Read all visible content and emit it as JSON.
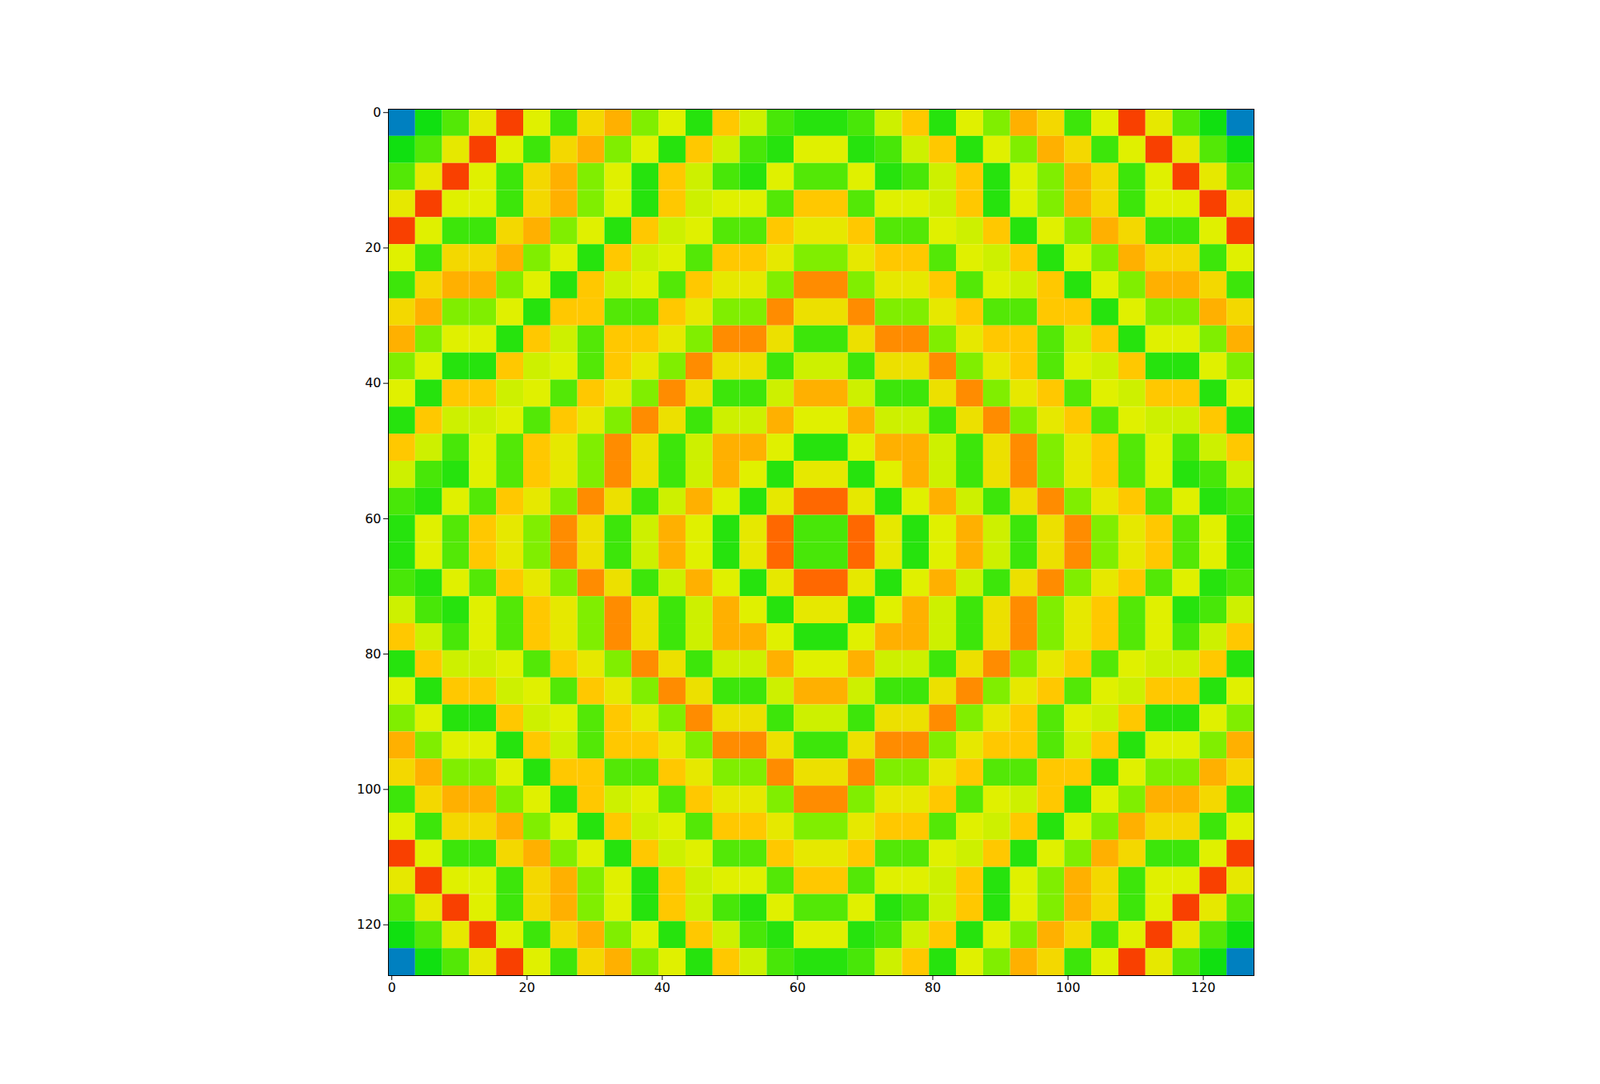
{
  "chart_data": {
    "type": "heatmap",
    "xlim": [
      -0.5,
      127.5
    ],
    "ylim": [
      127.5,
      -0.5
    ],
    "xticks": [
      0,
      20,
      40,
      60,
      80,
      100,
      120
    ],
    "yticks": [
      0,
      20,
      40,
      60,
      80,
      100,
      120
    ],
    "clim": [
      0,
      1
    ],
    "cells": [
      [
        0.2,
        0.4,
        0.46,
        0.62,
        0.82,
        0.6,
        0.44,
        0.66,
        0.72,
        0.5,
        0.6,
        0.42,
        0.7,
        0.58,
        0.45,
        0.42,
        0.42,
        0.45,
        0.58,
        0.7,
        0.42,
        0.6,
        0.5,
        0.72,
        0.66,
        0.44,
        0.6,
        0.82,
        0.62,
        0.46,
        0.4,
        0.2
      ],
      [
        0.4,
        0.46,
        0.62,
        0.82,
        0.6,
        0.44,
        0.66,
        0.72,
        0.5,
        0.6,
        0.42,
        0.7,
        0.58,
        0.45,
        0.42,
        0.6,
        0.6,
        0.42,
        0.45,
        0.58,
        0.7,
        0.42,
        0.6,
        0.5,
        0.72,
        0.66,
        0.44,
        0.6,
        0.82,
        0.62,
        0.46,
        0.4
      ],
      [
        0.46,
        0.62,
        0.82,
        0.6,
        0.44,
        0.66,
        0.72,
        0.5,
        0.6,
        0.42,
        0.7,
        0.58,
        0.45,
        0.42,
        0.6,
        0.46,
        0.46,
        0.6,
        0.42,
        0.45,
        0.58,
        0.7,
        0.42,
        0.6,
        0.5,
        0.72,
        0.66,
        0.44,
        0.6,
        0.82,
        0.62,
        0.46
      ],
      [
        0.62,
        0.82,
        0.6,
        0.6,
        0.44,
        0.66,
        0.72,
        0.5,
        0.6,
        0.42,
        0.7,
        0.58,
        0.6,
        0.6,
        0.46,
        0.7,
        0.7,
        0.46,
        0.6,
        0.6,
        0.58,
        0.7,
        0.42,
        0.6,
        0.5,
        0.72,
        0.66,
        0.44,
        0.6,
        0.6,
        0.82,
        0.62
      ],
      [
        0.82,
        0.6,
        0.44,
        0.44,
        0.66,
        0.72,
        0.5,
        0.6,
        0.42,
        0.7,
        0.58,
        0.6,
        0.46,
        0.46,
        0.7,
        0.62,
        0.62,
        0.7,
        0.46,
        0.46,
        0.6,
        0.58,
        0.7,
        0.42,
        0.6,
        0.5,
        0.72,
        0.66,
        0.44,
        0.44,
        0.6,
        0.82
      ],
      [
        0.6,
        0.44,
        0.66,
        0.66,
        0.72,
        0.5,
        0.6,
        0.42,
        0.7,
        0.58,
        0.6,
        0.46,
        0.7,
        0.7,
        0.62,
        0.5,
        0.5,
        0.62,
        0.7,
        0.7,
        0.46,
        0.6,
        0.58,
        0.7,
        0.42,
        0.6,
        0.5,
        0.72,
        0.66,
        0.66,
        0.44,
        0.6
      ],
      [
        0.44,
        0.66,
        0.72,
        0.72,
        0.5,
        0.6,
        0.42,
        0.7,
        0.58,
        0.6,
        0.46,
        0.7,
        0.62,
        0.62,
        0.5,
        0.75,
        0.75,
        0.5,
        0.62,
        0.62,
        0.7,
        0.46,
        0.6,
        0.58,
        0.7,
        0.42,
        0.6,
        0.5,
        0.72,
        0.72,
        0.66,
        0.44
      ],
      [
        0.66,
        0.72,
        0.5,
        0.5,
        0.6,
        0.42,
        0.7,
        0.7,
        0.46,
        0.46,
        0.7,
        0.62,
        0.5,
        0.5,
        0.75,
        0.64,
        0.64,
        0.75,
        0.5,
        0.5,
        0.62,
        0.7,
        0.46,
        0.46,
        0.7,
        0.7,
        0.42,
        0.6,
        0.5,
        0.5,
        0.72,
        0.66
      ],
      [
        0.72,
        0.5,
        0.6,
        0.6,
        0.42,
        0.7,
        0.58,
        0.46,
        0.7,
        0.7,
        0.62,
        0.5,
        0.75,
        0.75,
        0.64,
        0.44,
        0.44,
        0.64,
        0.75,
        0.75,
        0.5,
        0.62,
        0.7,
        0.7,
        0.46,
        0.58,
        0.7,
        0.42,
        0.6,
        0.6,
        0.5,
        0.72
      ],
      [
        0.5,
        0.6,
        0.42,
        0.42,
        0.7,
        0.58,
        0.6,
        0.46,
        0.7,
        0.62,
        0.5,
        0.75,
        0.64,
        0.64,
        0.44,
        0.58,
        0.58,
        0.44,
        0.64,
        0.64,
        0.75,
        0.5,
        0.62,
        0.7,
        0.46,
        0.6,
        0.58,
        0.7,
        0.42,
        0.42,
        0.6,
        0.5
      ],
      [
        0.6,
        0.42,
        0.7,
        0.7,
        0.58,
        0.6,
        0.46,
        0.7,
        0.62,
        0.5,
        0.75,
        0.64,
        0.44,
        0.44,
        0.58,
        0.72,
        0.72,
        0.58,
        0.44,
        0.44,
        0.64,
        0.75,
        0.5,
        0.62,
        0.7,
        0.46,
        0.6,
        0.58,
        0.7,
        0.7,
        0.42,
        0.6
      ],
      [
        0.42,
        0.7,
        0.58,
        0.58,
        0.6,
        0.46,
        0.7,
        0.62,
        0.5,
        0.75,
        0.64,
        0.44,
        0.58,
        0.58,
        0.72,
        0.6,
        0.6,
        0.72,
        0.58,
        0.58,
        0.44,
        0.64,
        0.75,
        0.5,
        0.62,
        0.7,
        0.46,
        0.6,
        0.58,
        0.58,
        0.7,
        0.42
      ],
      [
        0.7,
        0.58,
        0.45,
        0.6,
        0.46,
        0.7,
        0.62,
        0.5,
        0.75,
        0.64,
        0.44,
        0.58,
        0.72,
        0.72,
        0.6,
        0.42,
        0.42,
        0.6,
        0.72,
        0.72,
        0.58,
        0.44,
        0.64,
        0.75,
        0.5,
        0.62,
        0.7,
        0.46,
        0.6,
        0.45,
        0.58,
        0.7
      ],
      [
        0.58,
        0.45,
        0.42,
        0.6,
        0.46,
        0.7,
        0.62,
        0.5,
        0.75,
        0.64,
        0.44,
        0.58,
        0.72,
        0.6,
        0.42,
        0.62,
        0.62,
        0.42,
        0.6,
        0.72,
        0.58,
        0.44,
        0.64,
        0.75,
        0.5,
        0.62,
        0.7,
        0.46,
        0.6,
        0.42,
        0.45,
        0.58
      ],
      [
        0.45,
        0.42,
        0.6,
        0.46,
        0.7,
        0.62,
        0.5,
        0.75,
        0.64,
        0.44,
        0.58,
        0.72,
        0.6,
        0.42,
        0.62,
        0.78,
        0.78,
        0.62,
        0.42,
        0.6,
        0.72,
        0.58,
        0.44,
        0.64,
        0.75,
        0.5,
        0.62,
        0.7,
        0.46,
        0.6,
        0.42,
        0.45
      ],
      [
        0.42,
        0.6,
        0.46,
        0.7,
        0.62,
        0.5,
        0.75,
        0.64,
        0.44,
        0.58,
        0.72,
        0.6,
        0.42,
        0.62,
        0.78,
        0.45,
        0.45,
        0.78,
        0.62,
        0.42,
        0.6,
        0.72,
        0.58,
        0.44,
        0.64,
        0.75,
        0.5,
        0.62,
        0.7,
        0.46,
        0.6,
        0.42
      ],
      [
        0.42,
        0.6,
        0.46,
        0.7,
        0.62,
        0.5,
        0.75,
        0.64,
        0.44,
        0.58,
        0.72,
        0.6,
        0.42,
        0.62,
        0.78,
        0.45,
        0.45,
        0.78,
        0.62,
        0.42,
        0.6,
        0.72,
        0.58,
        0.44,
        0.64,
        0.75,
        0.5,
        0.62,
        0.7,
        0.46,
        0.6,
        0.42
      ],
      [
        0.45,
        0.42,
        0.6,
        0.46,
        0.7,
        0.62,
        0.5,
        0.75,
        0.64,
        0.44,
        0.58,
        0.72,
        0.6,
        0.42,
        0.62,
        0.78,
        0.78,
        0.62,
        0.42,
        0.6,
        0.72,
        0.58,
        0.44,
        0.64,
        0.75,
        0.5,
        0.62,
        0.7,
        0.46,
        0.6,
        0.42,
        0.45
      ],
      [
        0.58,
        0.45,
        0.42,
        0.6,
        0.46,
        0.7,
        0.62,
        0.5,
        0.75,
        0.64,
        0.44,
        0.58,
        0.72,
        0.6,
        0.42,
        0.62,
        0.62,
        0.42,
        0.6,
        0.72,
        0.58,
        0.44,
        0.64,
        0.75,
        0.5,
        0.62,
        0.7,
        0.46,
        0.6,
        0.42,
        0.45,
        0.58
      ],
      [
        0.7,
        0.58,
        0.45,
        0.6,
        0.46,
        0.7,
        0.62,
        0.5,
        0.75,
        0.64,
        0.44,
        0.58,
        0.72,
        0.72,
        0.6,
        0.42,
        0.42,
        0.6,
        0.72,
        0.72,
        0.58,
        0.44,
        0.64,
        0.75,
        0.5,
        0.62,
        0.7,
        0.46,
        0.6,
        0.45,
        0.58,
        0.7
      ],
      [
        0.42,
        0.7,
        0.58,
        0.58,
        0.6,
        0.46,
        0.7,
        0.62,
        0.5,
        0.75,
        0.64,
        0.44,
        0.58,
        0.58,
        0.72,
        0.6,
        0.6,
        0.72,
        0.58,
        0.58,
        0.44,
        0.64,
        0.75,
        0.5,
        0.62,
        0.7,
        0.46,
        0.6,
        0.58,
        0.58,
        0.7,
        0.42
      ],
      [
        0.6,
        0.42,
        0.7,
        0.7,
        0.58,
        0.6,
        0.46,
        0.7,
        0.62,
        0.5,
        0.75,
        0.64,
        0.44,
        0.44,
        0.58,
        0.72,
        0.72,
        0.58,
        0.44,
        0.44,
        0.64,
        0.75,
        0.5,
        0.62,
        0.7,
        0.46,
        0.6,
        0.58,
        0.7,
        0.7,
        0.42,
        0.6
      ],
      [
        0.5,
        0.6,
        0.42,
        0.42,
        0.7,
        0.58,
        0.6,
        0.46,
        0.7,
        0.62,
        0.5,
        0.75,
        0.64,
        0.64,
        0.44,
        0.58,
        0.58,
        0.44,
        0.64,
        0.64,
        0.75,
        0.5,
        0.62,
        0.7,
        0.46,
        0.6,
        0.58,
        0.7,
        0.42,
        0.42,
        0.6,
        0.5
      ],
      [
        0.72,
        0.5,
        0.6,
        0.6,
        0.42,
        0.7,
        0.58,
        0.46,
        0.7,
        0.7,
        0.62,
        0.5,
        0.75,
        0.75,
        0.64,
        0.44,
        0.44,
        0.64,
        0.75,
        0.75,
        0.5,
        0.62,
        0.7,
        0.7,
        0.46,
        0.58,
        0.7,
        0.42,
        0.6,
        0.6,
        0.5,
        0.72
      ],
      [
        0.66,
        0.72,
        0.5,
        0.5,
        0.6,
        0.42,
        0.7,
        0.7,
        0.46,
        0.46,
        0.7,
        0.62,
        0.5,
        0.5,
        0.75,
        0.64,
        0.64,
        0.75,
        0.5,
        0.5,
        0.62,
        0.7,
        0.46,
        0.46,
        0.7,
        0.7,
        0.42,
        0.6,
        0.5,
        0.5,
        0.72,
        0.66
      ],
      [
        0.44,
        0.66,
        0.72,
        0.72,
        0.5,
        0.6,
        0.42,
        0.7,
        0.58,
        0.6,
        0.46,
        0.7,
        0.62,
        0.62,
        0.5,
        0.75,
        0.75,
        0.5,
        0.62,
        0.62,
        0.7,
        0.46,
        0.6,
        0.58,
        0.7,
        0.42,
        0.6,
        0.5,
        0.72,
        0.72,
        0.66,
        0.44
      ],
      [
        0.6,
        0.44,
        0.66,
        0.66,
        0.72,
        0.5,
        0.6,
        0.42,
        0.7,
        0.58,
        0.6,
        0.46,
        0.7,
        0.7,
        0.62,
        0.5,
        0.5,
        0.62,
        0.7,
        0.7,
        0.46,
        0.6,
        0.58,
        0.7,
        0.42,
        0.6,
        0.5,
        0.72,
        0.66,
        0.66,
        0.44,
        0.6
      ],
      [
        0.82,
        0.6,
        0.44,
        0.44,
        0.66,
        0.72,
        0.5,
        0.6,
        0.42,
        0.7,
        0.58,
        0.6,
        0.46,
        0.46,
        0.7,
        0.62,
        0.62,
        0.7,
        0.46,
        0.46,
        0.6,
        0.58,
        0.7,
        0.42,
        0.6,
        0.5,
        0.72,
        0.66,
        0.44,
        0.44,
        0.6,
        0.82
      ],
      [
        0.62,
        0.82,
        0.6,
        0.6,
        0.44,
        0.66,
        0.72,
        0.5,
        0.6,
        0.42,
        0.7,
        0.58,
        0.6,
        0.6,
        0.46,
        0.7,
        0.7,
        0.46,
        0.6,
        0.6,
        0.58,
        0.7,
        0.42,
        0.6,
        0.5,
        0.72,
        0.66,
        0.44,
        0.6,
        0.6,
        0.82,
        0.62
      ],
      [
        0.46,
        0.62,
        0.82,
        0.6,
        0.44,
        0.66,
        0.72,
        0.5,
        0.6,
        0.42,
        0.7,
        0.58,
        0.45,
        0.42,
        0.6,
        0.46,
        0.46,
        0.6,
        0.42,
        0.45,
        0.58,
        0.7,
        0.42,
        0.6,
        0.5,
        0.72,
        0.66,
        0.44,
        0.6,
        0.82,
        0.62,
        0.46
      ],
      [
        0.4,
        0.46,
        0.62,
        0.82,
        0.6,
        0.44,
        0.66,
        0.72,
        0.5,
        0.6,
        0.42,
        0.7,
        0.58,
        0.45,
        0.42,
        0.6,
        0.6,
        0.42,
        0.45,
        0.58,
        0.7,
        0.42,
        0.6,
        0.5,
        0.72,
        0.66,
        0.44,
        0.6,
        0.82,
        0.62,
        0.46,
        0.4
      ],
      [
        0.2,
        0.4,
        0.46,
        0.62,
        0.82,
        0.6,
        0.44,
        0.66,
        0.72,
        0.5,
        0.6,
        0.42,
        0.7,
        0.58,
        0.45,
        0.42,
        0.42,
        0.45,
        0.58,
        0.7,
        0.42,
        0.6,
        0.5,
        0.72,
        0.66,
        0.44,
        0.6,
        0.82,
        0.62,
        0.46,
        0.4,
        0.2
      ]
    ]
  }
}
